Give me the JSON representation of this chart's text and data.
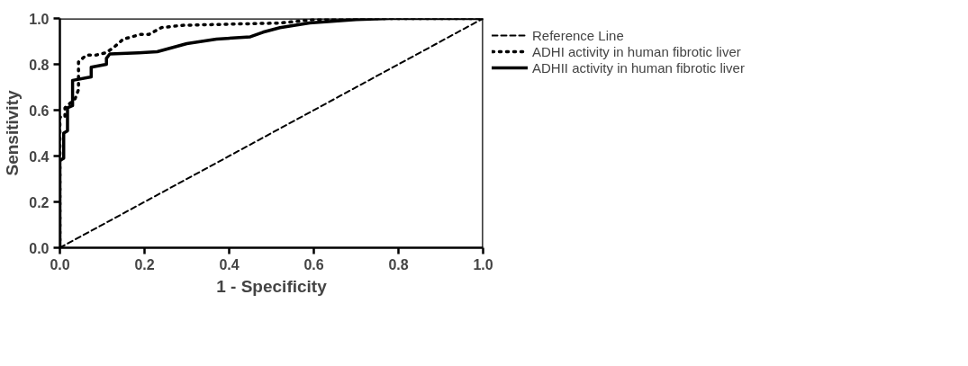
{
  "chart_data": {
    "type": "line",
    "xlabel": "1 - Specificity",
    "ylabel": "Sensitivity",
    "xlim": [
      0,
      1
    ],
    "ylim": [
      0,
      1
    ],
    "xticks": [
      {
        "value": 0,
        "label": "0.0"
      },
      {
        "value": 0.2,
        "label": "0.2"
      },
      {
        "value": 0.4,
        "label": "0.4"
      },
      {
        "value": 0.6,
        "label": "0.6"
      },
      {
        "value": 0.8,
        "label": "0.8"
      },
      {
        "value": 1,
        "label": "1.0"
      }
    ],
    "yticks": [
      {
        "value": 0,
        "label": "0.0"
      },
      {
        "value": 0.2,
        "label": "0.2"
      },
      {
        "value": 0.4,
        "label": "0.4"
      },
      {
        "value": 0.6,
        "label": "0.6"
      },
      {
        "value": 0.8,
        "label": "0.8"
      },
      {
        "value": 1,
        "label": "1.0"
      }
    ],
    "grid": false,
    "legend": "right",
    "marker": "none",
    "series": [
      {
        "name": "Reference Line",
        "color": "#000000",
        "line_style": "dashed",
        "x": [
          0,
          1
        ],
        "values": [
          0,
          1
        ]
      },
      {
        "name": "ADHI activity in human fibrotic liver",
        "color": "#000000",
        "line_style": "dotted",
        "x": [
          0,
          0,
          0.012,
          0.012,
          0.036,
          0.044,
          0.044,
          0.044,
          0.062,
          0.085,
          0.108,
          0.125,
          0.15,
          0.19,
          0.21,
          0.24,
          0.29,
          0.4,
          0.52,
          0.6,
          0.73,
          1.0
        ],
        "values": [
          0,
          0.57,
          0.57,
          0.61,
          0.65,
          0.69,
          0.77,
          0.81,
          0.84,
          0.84,
          0.85,
          0.87,
          0.91,
          0.93,
          0.93,
          0.96,
          0.97,
          0.975,
          0.98,
          0.995,
          1.0,
          1.0
        ]
      },
      {
        "name": "ADHII activity in human fibrotic liver",
        "color": "#000000",
        "line_style": "solid",
        "x": [
          0,
          0,
          0.009,
          0.009,
          0.018,
          0.018,
          0.03,
          0.03,
          0.074,
          0.074,
          0.11,
          0.11,
          0.118,
          0.186,
          0.23,
          0.3,
          0.37,
          0.45,
          0.48,
          0.52,
          0.59,
          0.7,
          0.78,
          1.0
        ],
        "values": [
          0,
          0.38,
          0.39,
          0.5,
          0.51,
          0.61,
          0.62,
          0.73,
          0.745,
          0.787,
          0.8,
          0.826,
          0.845,
          0.85,
          0.855,
          0.89,
          0.91,
          0.92,
          0.94,
          0.96,
          0.98,
          0.995,
          1.0,
          1.0
        ]
      }
    ]
  }
}
